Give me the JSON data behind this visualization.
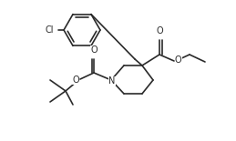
{
  "bg_color": "#ffffff",
  "line_color": "#2a2a2a",
  "line_width": 1.2,
  "label_Cl": "Cl",
  "label_O": "O",
  "label_N": "N",
  "font_size": 7.0
}
